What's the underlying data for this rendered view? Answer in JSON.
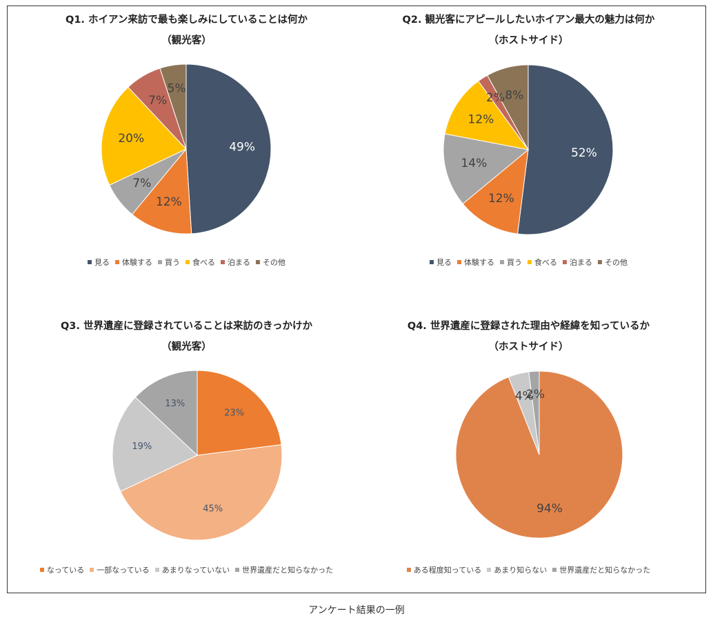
{
  "caption": "アンケート結果の一例",
  "chart_data": [
    {
      "type": "pie",
      "title": "Q1. ホイアン来訪で最も楽しみにしていることは何か",
      "subtitle": "（観光客）",
      "categories": [
        "見る",
        "体験する",
        "買う",
        "食べる",
        "泊まる",
        "その他"
      ],
      "values": [
        49,
        12,
        7,
        20,
        7,
        5
      ],
      "labels": [
        "49%",
        "12%",
        "7%",
        "20%",
        "7%",
        "5%"
      ],
      "colors": [
        "#44546a",
        "#ed7d31",
        "#a5a5a5",
        "#ffc000",
        "#c0695a",
        "#8b7355"
      ],
      "label_colors": [
        "#ffffff",
        "#404040",
        "#404040",
        "#404040",
        "#404040",
        "#404040"
      ],
      "legend": "bottom"
    },
    {
      "type": "pie",
      "title": "Q2. 観光客にアピールしたいホイアン最大の魅力は何か",
      "subtitle": "（ホストサイド）",
      "categories": [
        "見る",
        "体験する",
        "買う",
        "食べる",
        "泊まる",
        "その他"
      ],
      "values": [
        52,
        12,
        14,
        12,
        2,
        8
      ],
      "labels": [
        "52%",
        "12%",
        "14%",
        "12%",
        "2%",
        "8%"
      ],
      "colors": [
        "#44546a",
        "#ed7d31",
        "#a5a5a5",
        "#ffc000",
        "#c0695a",
        "#8b7355"
      ],
      "label_colors": [
        "#ffffff",
        "#404040",
        "#404040",
        "#404040",
        "#404040",
        "#404040"
      ],
      "legend": "bottom"
    },
    {
      "type": "pie",
      "title": "Q3. 世界遺産に登録されていることは来訪のきっかけか",
      "subtitle": "（観光客）",
      "categories": [
        "なっている",
        "一部なっている",
        "あまりなっていない",
        "世界遺産だと知らなかった"
      ],
      "values": [
        23,
        45,
        19,
        13
      ],
      "labels": [
        "23%",
        "45%",
        "19%",
        "13%"
      ],
      "colors": [
        "#ed7d31",
        "#f4b183",
        "#c9c9c9",
        "#a5a5a5"
      ],
      "label_colors": [
        "#44546a",
        "#44546a",
        "#44546a",
        "#44546a"
      ],
      "legend": "bottom"
    },
    {
      "type": "pie",
      "title": "Q4. 世界遺産に登録された理由や経緯を知っているか",
      "subtitle": "（ホストサイド）",
      "categories": [
        "ある程度知っている",
        "あまり知らない",
        "世界遺産だと知らなかった"
      ],
      "values": [
        94,
        4,
        2
      ],
      "labels": [
        "94%",
        "4%",
        "2%"
      ],
      "colors": [
        "#e0834a",
        "#c9c9c9",
        "#a5a5a5"
      ],
      "label_colors": [
        "#404040",
        "#404040",
        "#404040"
      ],
      "legend": "bottom"
    }
  ]
}
